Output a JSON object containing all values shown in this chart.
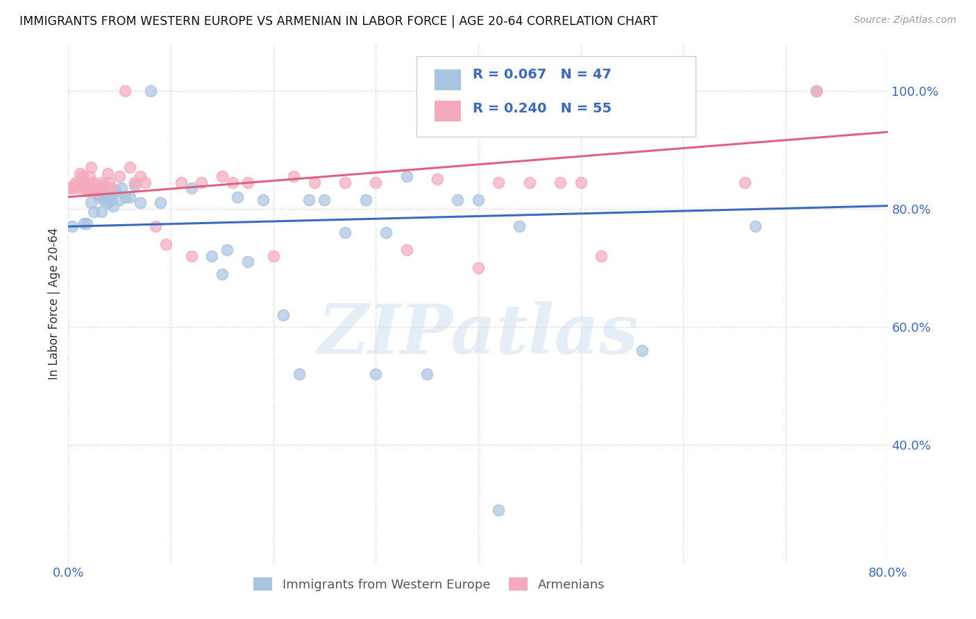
{
  "title": "IMMIGRANTS FROM WESTERN EUROPE VS ARMENIAN IN LABOR FORCE | AGE 20-64 CORRELATION CHART",
  "source": "Source: ZipAtlas.com",
  "ylabel": "In Labor Force | Age 20-64",
  "xlim": [
    0.0,
    0.8
  ],
  "ylim": [
    0.2,
    1.08
  ],
  "ytick_positions": [
    0.4,
    0.6,
    0.8,
    1.0
  ],
  "ytick_labels": [
    "40.0%",
    "60.0%",
    "80.0%",
    "100.0%"
  ],
  "xtick_positions": [
    0.0,
    0.1,
    0.2,
    0.3,
    0.4,
    0.5,
    0.6,
    0.7,
    0.8
  ],
  "xtick_labels": [
    "0.0%",
    "",
    "",
    "",
    "",
    "",
    "",
    "",
    "80.0%"
  ],
  "blue_R": "0.067",
  "blue_N": "47",
  "pink_R": "0.240",
  "pink_N": "55",
  "blue_color": "#a8c4e0",
  "pink_color": "#f4aabc",
  "blue_line_color": "#3a69c0",
  "pink_line_color": "#e06080",
  "legend_text_color": "#3a69c0",
  "blue_scatter_x": [
    0.004,
    0.015,
    0.018,
    0.022,
    0.025,
    0.028,
    0.03,
    0.032,
    0.034,
    0.036,
    0.038,
    0.04,
    0.042,
    0.044,
    0.046,
    0.05,
    0.052,
    0.056,
    0.06,
    0.065,
    0.07,
    0.08,
    0.09,
    0.12,
    0.14,
    0.15,
    0.155,
    0.165,
    0.175,
    0.19,
    0.21,
    0.225,
    0.235,
    0.25,
    0.27,
    0.29,
    0.3,
    0.31,
    0.33,
    0.35,
    0.38,
    0.4,
    0.42,
    0.44,
    0.56,
    0.67,
    0.73
  ],
  "blue_scatter_y": [
    0.77,
    0.775,
    0.775,
    0.81,
    0.795,
    0.825,
    0.82,
    0.795,
    0.815,
    0.82,
    0.81,
    0.825,
    0.815,
    0.805,
    0.83,
    0.815,
    0.835,
    0.82,
    0.82,
    0.84,
    0.81,
    1.0,
    0.81,
    0.835,
    0.72,
    0.69,
    0.73,
    0.82,
    0.71,
    0.815,
    0.62,
    0.52,
    0.815,
    0.815,
    0.76,
    0.815,
    0.52,
    0.76,
    0.855,
    0.52,
    0.815,
    0.815,
    0.29,
    0.77,
    0.56,
    0.77,
    1.0
  ],
  "pink_scatter_x": [
    0.001,
    0.003,
    0.005,
    0.007,
    0.008,
    0.01,
    0.011,
    0.013,
    0.014,
    0.015,
    0.016,
    0.018,
    0.019,
    0.02,
    0.021,
    0.022,
    0.024,
    0.025,
    0.026,
    0.028,
    0.03,
    0.032,
    0.035,
    0.038,
    0.04,
    0.042,
    0.05,
    0.055,
    0.06,
    0.065,
    0.07,
    0.075,
    0.085,
    0.095,
    0.11,
    0.12,
    0.13,
    0.15,
    0.16,
    0.175,
    0.2,
    0.22,
    0.24,
    0.27,
    0.3,
    0.33,
    0.36,
    0.4,
    0.42,
    0.45,
    0.48,
    0.5,
    0.52,
    0.66,
    0.73
  ],
  "pink_scatter_y": [
    0.835,
    0.835,
    0.84,
    0.845,
    0.84,
    0.835,
    0.86,
    0.84,
    0.855,
    0.845,
    0.835,
    0.83,
    0.835,
    0.83,
    0.855,
    0.87,
    0.84,
    0.845,
    0.835,
    0.83,
    0.835,
    0.845,
    0.84,
    0.86,
    0.845,
    0.835,
    0.855,
    1.0,
    0.87,
    0.845,
    0.855,
    0.845,
    0.77,
    0.74,
    0.845,
    0.72,
    0.845,
    0.855,
    0.845,
    0.845,
    0.72,
    0.855,
    0.845,
    0.845,
    0.845,
    0.73,
    0.85,
    0.7,
    0.845,
    0.845,
    0.845,
    0.845,
    0.72,
    0.845,
    1.0
  ],
  "blue_trend_x0": 0.0,
  "blue_trend_x1": 0.8,
  "blue_trend_y0": 0.77,
  "blue_trend_y1": 0.805,
  "pink_trend_x0": 0.0,
  "pink_trend_x1": 0.8,
  "pink_trend_y0": 0.82,
  "pink_trend_y1": 0.93,
  "watermark": "ZIPatlas",
  "background_color": "#ffffff",
  "grid_color": "#cccccc"
}
